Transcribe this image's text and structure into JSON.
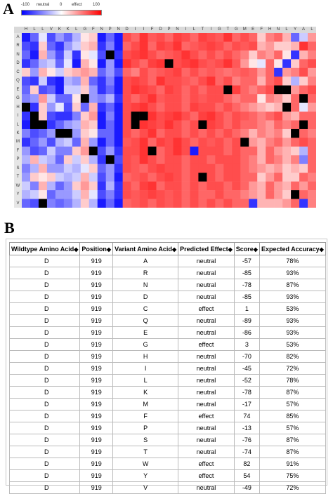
{
  "panel_a": {
    "letter": "A",
    "legend": {
      "labels": [
        "-100",
        "neutral",
        "0",
        "effect",
        "100"
      ],
      "colors": {
        "low": "#0000ff",
        "mid": "#ffffff",
        "high": "#ff0000",
        "missing": "#000000"
      }
    },
    "column_labels": [
      "H",
      "L",
      "L",
      "V",
      "K",
      "K",
      "L",
      "G",
      "F",
      "N",
      "P",
      "N",
      "D",
      "I",
      "I",
      "F",
      "D",
      "P",
      "N",
      "I",
      "L",
      "T",
      "I",
      "G",
      "T",
      "G",
      "M",
      "E",
      "F",
      "H",
      "N",
      "L",
      "Y",
      "A",
      "L"
    ],
    "row_labels": [
      "A",
      "R",
      "N",
      "D",
      "C",
      "Q",
      "E",
      "G",
      "H",
      "I",
      "L",
      "K",
      "M",
      "F",
      "P",
      "S",
      "T",
      "W",
      "Y",
      "V"
    ],
    "heatmap": [
      [
        -90,
        -60,
        -10,
        -70,
        -40,
        -60,
        -30,
        10,
        20,
        -90,
        -60,
        -90,
        70,
        60,
        80,
        65,
        70,
        60,
        75,
        70,
        60,
        75,
        70,
        65,
        80,
        60,
        70,
        60,
        20,
        50,
        60,
        30,
        -60,
        -20,
        40
      ],
      [
        -70,
        -80,
        20,
        -60,
        -80,
        -40,
        -20,
        20,
        30,
        -80,
        -50,
        -90,
        60,
        70,
        80,
        60,
        75,
        70,
        80,
        60,
        65,
        70,
        75,
        70,
        60,
        70,
        65,
        70,
        30,
        40,
        20,
        20,
        30,
        80,
        60
      ],
      [
        -60,
        -90,
        30,
        -40,
        -70,
        -20,
        -80,
        10,
        -10,
        -70,
        null,
        -80,
        70,
        75,
        80,
        70,
        60,
        65,
        70,
        80,
        70,
        60,
        70,
        60,
        70,
        60,
        50,
        20,
        50,
        40,
        60,
        10,
        -80,
        30,
        50
      ],
      [
        -80,
        -60,
        -30,
        -20,
        -60,
        -10,
        -90,
        30,
        10,
        -90,
        -40,
        -90,
        80,
        70,
        60,
        75,
        80,
        null,
        70,
        75,
        80,
        70,
        65,
        70,
        80,
        65,
        40,
        10,
        -10,
        60,
        10,
        -80,
        20,
        60,
        70
      ],
      [
        20,
        -40,
        30,
        10,
        -20,
        20,
        30,
        40,
        30,
        -60,
        -40,
        -70,
        60,
        50,
        70,
        60,
        65,
        70,
        75,
        60,
        70,
        60,
        65,
        60,
        55,
        60,
        65,
        60,
        40,
        60,
        -80,
        40,
        50,
        70,
        40
      ],
      [
        -70,
        -80,
        -20,
        -80,
        -90,
        -30,
        -40,
        30,
        -60,
        -80,
        -50,
        -90,
        70,
        75,
        70,
        60,
        80,
        70,
        70,
        65,
        60,
        70,
        80,
        60,
        70,
        50,
        60,
        60,
        30,
        60,
        70,
        20,
        -30,
        20,
        50
      ],
      [
        -60,
        20,
        -70,
        -60,
        -90,
        -20,
        -20,
        20,
        -40,
        -80,
        -60,
        -90,
        70,
        80,
        75,
        70,
        60,
        75,
        70,
        60,
        70,
        60,
        70,
        70,
        null,
        75,
        60,
        50,
        60,
        70,
        null,
        null,
        40,
        60,
        70
      ],
      [
        -50,
        -40,
        40,
        -20,
        -60,
        -60,
        10,
        null,
        -40,
        -50,
        -30,
        -80,
        70,
        60,
        70,
        80,
        65,
        70,
        70,
        60,
        70,
        65,
        70,
        70,
        60,
        50,
        60,
        60,
        10,
        50,
        40,
        20,
        60,
        null,
        60
      ],
      [
        null,
        -80,
        20,
        -40,
        -10,
        -70,
        20,
        -60,
        30,
        -80,
        -60,
        -90,
        70,
        75,
        80,
        70,
        60,
        70,
        70,
        60,
        75,
        70,
        70,
        60,
        70,
        60,
        50,
        40,
        30,
        20,
        30,
        null,
        60,
        -10,
        40
      ],
      [
        -80,
        null,
        20,
        -70,
        -80,
        -80,
        -50,
        20,
        40,
        -90,
        -50,
        -90,
        70,
        null,
        null,
        80,
        70,
        75,
        80,
        70,
        60,
        75,
        80,
        70,
        60,
        70,
        65,
        60,
        50,
        60,
        70,
        40,
        30,
        60,
        60
      ],
      [
        -90,
        null,
        null,
        -80,
        -60,
        -40,
        -30,
        30,
        20,
        -90,
        -60,
        -90,
        70,
        null,
        80,
        75,
        70,
        80,
        70,
        60,
        70,
        null,
        75,
        70,
        60,
        70,
        60,
        60,
        50,
        40,
        60,
        50,
        60,
        null,
        60
      ],
      [
        -50,
        -70,
        -60,
        -40,
        null,
        null,
        -40,
        20,
        10,
        -60,
        -60,
        -90,
        70,
        60,
        70,
        80,
        60,
        70,
        70,
        60,
        70,
        60,
        70,
        60,
        70,
        60,
        50,
        30,
        50,
        40,
        50,
        20,
        null,
        60,
        50
      ],
      [
        -80,
        -60,
        -40,
        -70,
        -30,
        -20,
        -60,
        30,
        -40,
        -90,
        -60,
        -90,
        65,
        70,
        80,
        60,
        75,
        70,
        80,
        70,
        60,
        70,
        65,
        70,
        60,
        70,
        null,
        40,
        30,
        50,
        60,
        40,
        60,
        70,
        60
      ],
      [
        -40,
        -70,
        -60,
        -20,
        -50,
        -50,
        20,
        40,
        null,
        -70,
        -40,
        -80,
        70,
        70,
        80,
        null,
        60,
        70,
        80,
        70,
        -90,
        70,
        70,
        70,
        60,
        70,
        60,
        60,
        30,
        60,
        40,
        30,
        20,
        -30,
        60
      ],
      [
        -30,
        30,
        -20,
        -30,
        -60,
        20,
        -20,
        20,
        -30,
        -80,
        null,
        -70,
        70,
        65,
        80,
        70,
        60,
        70,
        70,
        60,
        70,
        70,
        60,
        70,
        70,
        70,
        60,
        50,
        30,
        60,
        50,
        30,
        50,
        -50,
        60
      ],
      [
        -50,
        -30,
        30,
        -40,
        -40,
        -20,
        -30,
        -10,
        20,
        -60,
        -40,
        -80,
        70,
        65,
        60,
        70,
        75,
        70,
        70,
        60,
        70,
        70,
        70,
        60,
        70,
        70,
        60,
        50,
        40,
        30,
        40,
        20,
        30,
        20,
        60
      ],
      [
        -40,
        20,
        10,
        20,
        -20,
        -30,
        -20,
        30,
        -20,
        -70,
        -40,
        -90,
        60,
        65,
        70,
        60,
        70,
        75,
        70,
        60,
        70,
        null,
        70,
        60,
        70,
        70,
        60,
        60,
        20,
        40,
        60,
        20,
        20,
        60,
        50
      ],
      [
        -20,
        -50,
        30,
        -30,
        -60,
        -40,
        20,
        40,
        20,
        -80,
        -30,
        -80,
        70,
        60,
        75,
        80,
        60,
        70,
        70,
        60,
        70,
        60,
        70,
        70,
        60,
        70,
        60,
        40,
        30,
        60,
        40,
        30,
        60,
        40,
        60
      ],
      [
        -30,
        -20,
        10,
        -60,
        -40,
        -40,
        -20,
        30,
        -10,
        -70,
        -50,
        -80,
        70,
        65,
        70,
        75,
        70,
        65,
        70,
        60,
        70,
        60,
        60,
        70,
        60,
        60,
        50,
        40,
        30,
        60,
        40,
        20,
        null,
        60,
        50
      ],
      [
        -60,
        -70,
        null,
        -50,
        -60,
        -50,
        -30,
        20,
        -30,
        -90,
        -60,
        -90,
        60,
        65,
        70,
        60,
        70,
        65,
        70,
        60,
        70,
        60,
        70,
        60,
        70,
        60,
        60,
        -80,
        30,
        30,
        30,
        40,
        60,
        -80,
        50
      ]
    ]
  },
  "panel_b": {
    "letter": "B",
    "sort_icon": "sort-diamond-icon",
    "columns": [
      "Wildtype Amino Acid",
      "Position",
      "Variant Amino Acid",
      "Predicted Effect",
      "Score",
      "Expected Accuracy"
    ],
    "sort_glyph": "◆",
    "rows": [
      [
        "D",
        "919",
        "A",
        "neutral",
        "-57",
        "78%"
      ],
      [
        "D",
        "919",
        "R",
        "neutral",
        "-85",
        "93%"
      ],
      [
        "D",
        "919",
        "N",
        "neutral",
        "-78",
        "87%"
      ],
      [
        "D",
        "919",
        "D",
        "neutral",
        "-85",
        "93%"
      ],
      [
        "D",
        "919",
        "C",
        "effect",
        "1",
        "53%"
      ],
      [
        "D",
        "919",
        "Q",
        "neutral",
        "-89",
        "93%"
      ],
      [
        "D",
        "919",
        "E",
        "neutral",
        "-86",
        "93%"
      ],
      [
        "D",
        "919",
        "G",
        "effect",
        "3",
        "53%"
      ],
      [
        "D",
        "919",
        "H",
        "neutral",
        "-70",
        "82%"
      ],
      [
        "D",
        "919",
        "I",
        "neutral",
        "-45",
        "72%"
      ],
      [
        "D",
        "919",
        "L",
        "neutral",
        "-52",
        "78%"
      ],
      [
        "D",
        "919",
        "K",
        "neutral",
        "-78",
        "87%"
      ],
      [
        "D",
        "919",
        "M",
        "neutral",
        "-17",
        "57%"
      ],
      [
        "D",
        "919",
        "F",
        "effect",
        "74",
        "85%"
      ],
      [
        "D",
        "919",
        "P",
        "neutral",
        "-13",
        "57%"
      ],
      [
        "D",
        "919",
        "S",
        "neutral",
        "-76",
        "87%"
      ],
      [
        "D",
        "919",
        "T",
        "neutral",
        "-74",
        "87%"
      ],
      [
        "D",
        "919",
        "W",
        "effect",
        "82",
        "91%"
      ],
      [
        "D",
        "919",
        "Y",
        "effect",
        "54",
        "75%"
      ],
      [
        "D",
        "919",
        "V",
        "neutral",
        "-49",
        "72%"
      ]
    ]
  }
}
